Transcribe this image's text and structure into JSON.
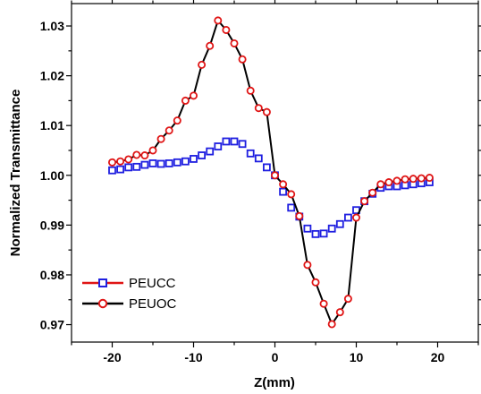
{
  "chart_data": {
    "type": "scatter",
    "xlabel": "Z(mm)",
    "ylabel": "Normalized Transmittance",
    "xlim": [
      -25,
      25
    ],
    "ylim": [
      0.9665,
      1.0345
    ],
    "x_ticks": [
      -20,
      -10,
      0,
      10,
      20
    ],
    "y_ticks": [
      0.97,
      0.98,
      0.99,
      1.0,
      1.01,
      1.02,
      1.03
    ],
    "x_tick_labels": [
      "-20",
      "-10",
      "0",
      "10",
      "20"
    ],
    "y_tick_labels": [
      "0.97",
      "0.98",
      "0.99",
      "1.00",
      "1.01",
      "1.02",
      "1.03"
    ],
    "grid": false,
    "legend_position": "bottom-left",
    "series": [
      {
        "name": "PEUCC",
        "color": "#1f1fe0",
        "marker": "square",
        "line": false,
        "x": [
          -20,
          -19,
          -18,
          -17,
          -16,
          -15,
          -14,
          -13,
          -12,
          -11,
          -10,
          -9,
          -8,
          -7,
          -6,
          -5,
          -4,
          -3,
          -2,
          -1,
          0,
          1,
          2,
          3,
          4,
          5,
          6,
          7,
          8,
          9,
          10,
          11,
          12,
          13,
          14,
          15,
          16,
          17,
          18,
          19
        ],
        "y": [
          1.001,
          1.0012,
          1.0016,
          1.0017,
          1.0021,
          1.0024,
          1.0023,
          1.0024,
          1.0026,
          1.0028,
          1.0033,
          1.004,
          1.0048,
          1.0058,
          1.0068,
          1.0068,
          1.0063,
          1.0044,
          1.0034,
          1.0016,
          1.0,
          0.9967,
          0.9935,
          0.9917,
          0.9893,
          0.9882,
          0.9883,
          0.9893,
          0.9902,
          0.9915,
          0.993,
          0.9948,
          0.9963,
          0.9975,
          0.9978,
          0.9978,
          0.998,
          0.9982,
          0.9984,
          0.9986
        ]
      },
      {
        "name": "PEUOC",
        "color": "#e01515",
        "line_color": "#000000",
        "marker": "circle",
        "line": true,
        "x": [
          -20,
          -19,
          -18,
          -17,
          -16,
          -15,
          -14,
          -13,
          -12,
          -11,
          -10,
          -9,
          -8,
          -7,
          -6,
          -5,
          -4,
          -3,
          -2,
          -1,
          0,
          1,
          2,
          3,
          4,
          5,
          6,
          7,
          8,
          9,
          10,
          11,
          12,
          13,
          14,
          15,
          16,
          17,
          18,
          19
        ],
        "y": [
          1.0026,
          1.0028,
          1.0032,
          1.0041,
          1.004,
          1.005,
          1.0073,
          1.009,
          1.011,
          1.015,
          1.016,
          1.0222,
          1.026,
          1.0311,
          1.0292,
          1.0265,
          1.0233,
          1.017,
          1.0135,
          1.0127,
          1.0,
          0.9982,
          0.9962,
          0.9918,
          0.982,
          0.9785,
          0.9742,
          0.9701,
          0.9725,
          0.9752,
          0.9915,
          0.9948,
          0.9965,
          0.9982,
          0.9986,
          0.9989,
          0.9992,
          0.9993,
          0.9994,
          0.9995
        ]
      }
    ]
  }
}
